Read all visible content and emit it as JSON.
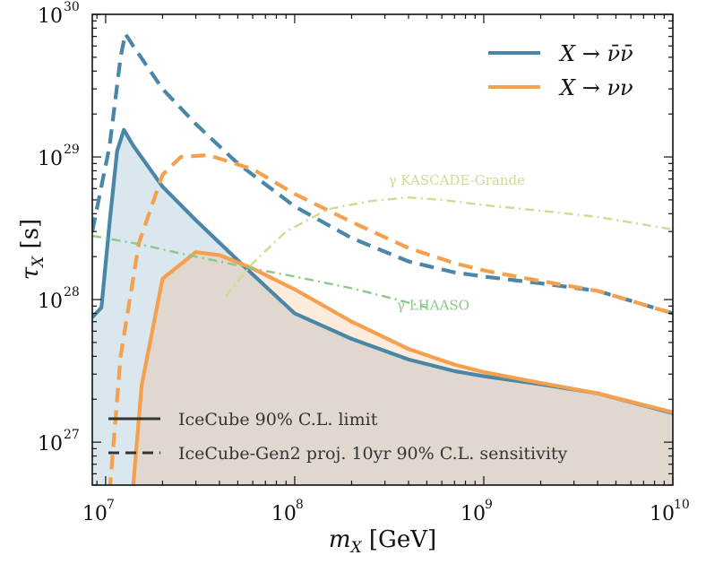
{
  "chart_data": {
    "type": "line",
    "xscale": "log",
    "yscale": "log",
    "xlim": [
      8500000.0,
      10000000000.0
    ],
    "ylim": [
      5e+26,
      1e+30
    ],
    "xlabel": "m_X [GeV]",
    "ylabel": "τ_X [s]",
    "xticks": [
      {
        "base": "10",
        "exp": "7",
        "value": 10000000.0
      },
      {
        "base": "10",
        "exp": "8",
        "value": 100000000.0
      },
      {
        "base": "10",
        "exp": "9",
        "value": 1000000000.0
      },
      {
        "base": "10",
        "exp": "10",
        "value": 10000000000.0
      }
    ],
    "yticks": [
      {
        "base": "10",
        "exp": "27",
        "value": 1e+27
      },
      {
        "base": "10",
        "exp": "28",
        "value": 1e+28
      },
      {
        "base": "10",
        "exp": "29",
        "value": 1e+29
      },
      {
        "base": "10",
        "exp": "30",
        "value": 1e+30
      }
    ],
    "colors": {
      "blue": "#4a86a8",
      "orange": "#f4a04e",
      "kascade": "#c9dd95",
      "lhaaso": "#8ac98a"
    },
    "series": [
      {
        "name": "X → ν̄ν̄ (IceCube 90% C.L. limit)",
        "color_key": "blue",
        "style": "solid",
        "fill": true,
        "x": [
          8500000.0,
          9500000.0,
          10500000.0,
          11500000.0,
          12500000.0,
          14000000.0,
          20000000.0,
          30000000.0,
          40000000.0,
          60000000.0,
          100000000.0,
          200000000.0,
          400000000.0,
          700000000.0,
          1000000000.0,
          2000000000.0,
          4000000000.0,
          10000000000.0
        ],
        "y": [
          7.5e+27,
          8.8e+27,
          3.5e+28,
          1.1e+29,
          1.55e+29,
          1.2e+29,
          6.2e+28,
          3.6e+28,
          2.5e+28,
          1.5e+28,
          8e+27,
          5.3e+27,
          3.8e+27,
          3.15e+27,
          2.9e+27,
          2.55e+27,
          2.2e+27,
          1.6e+27
        ]
      },
      {
        "name": "X → νν (IceCube 90% C.L. limit)",
        "color_key": "orange",
        "style": "solid",
        "fill": true,
        "x": [
          13500000.0,
          15500000.0,
          20000000.0,
          30000000.0,
          40000000.0,
          60000000.0,
          100000000.0,
          200000000.0,
          400000000.0,
          700000000.0,
          1000000000.0,
          2000000000.0,
          4000000000.0,
          10000000000.0
        ],
        "y": [
          2.8e+26,
          2.5e+27,
          1.4e+28,
          2.15e+28,
          2.05e+28,
          1.65e+28,
          1.18e+28,
          7e+27,
          4.5e+27,
          3.5e+27,
          3.1e+27,
          2.6e+27,
          2.2e+27,
          1.62e+27
        ]
      },
      {
        "name": "X → ν̄ν̄ (IceCube-Gen2 proj. 10yr sensitivity)",
        "color_key": "blue",
        "style": "dashed",
        "fill": false,
        "x": [
          8500000.0,
          10500000.0,
          12000000.0,
          12700000.0,
          14000000.0,
          20000000.0,
          30000000.0,
          50000000.0,
          100000000.0,
          200000000.0,
          400000000.0,
          700000000.0,
          1000000000.0,
          2000000000.0,
          4000000000.0,
          10000000000.0
        ],
        "y": [
          3e+28,
          1.2e+29,
          5e+29,
          7.3e+29,
          6e+29,
          3e+29,
          1.7e+29,
          9e+28,
          4.5e+28,
          2.7e+28,
          1.85e+28,
          1.55e+28,
          1.45e+28,
          1.3e+28,
          1.15e+28,
          8e+27
        ]
      },
      {
        "name": "X → νν (IceCube-Gen2 proj. 10yr sensitivity)",
        "color_key": "orange",
        "style": "dashed",
        "fill": false,
        "x": [
          10500000.0,
          12000000.0,
          15000000.0,
          20000000.0,
          25000000.0,
          35000000.0,
          60000000.0,
          100000000.0,
          200000000.0,
          400000000.0,
          700000000.0,
          1000000000.0,
          2000000000.0,
          4000000000.0,
          10000000000.0
        ],
        "y": [
          4.5e+26,
          4e+27,
          2.5e+28,
          7.5e+28,
          1e+29,
          1.03e+29,
          8.2e+28,
          5.5e+28,
          3.5e+28,
          2.3e+28,
          1.8e+28,
          1.6e+28,
          1.35e+28,
          1.15e+28,
          8e+27
        ]
      },
      {
        "name": "γ KASCADE-Grande",
        "color_key": "kascade",
        "style": "dashdot",
        "fill": false,
        "x": [
          43000000.0,
          60000000.0,
          90000000.0,
          150000000.0,
          250000000.0,
          400000000.0,
          600000000.0,
          1000000000.0,
          2000000000.0,
          4000000000.0,
          10000000000.0
        ],
        "y": [
          1.05e+28,
          1.8e+28,
          3e+28,
          4.3e+28,
          4.9e+28,
          5.2e+28,
          5e+28,
          4.6e+28,
          4.2e+28,
          3.8e+28,
          3.1e+28
        ]
      },
      {
        "name": "γ LHAASO",
        "color_key": "lhaaso",
        "style": "dashdot",
        "fill": false,
        "x": [
          8500000.0,
          15000000.0,
          25000000.0,
          40000000.0,
          60000000.0,
          100000000.0,
          200000000.0,
          300000000.0,
          500000000.0
        ],
        "y": [
          2.8e+28,
          2.45e+28,
          2.1e+28,
          1.85e+28,
          1.65e+28,
          1.45e+28,
          1.2e+28,
          1.05e+28,
          8.8e+27
        ]
      }
    ],
    "legend_top": [
      {
        "label": "X → ν̄ν̄",
        "color_key": "blue"
      },
      {
        "label": "X → νν",
        "color_key": "orange"
      }
    ],
    "legend_bottom": [
      {
        "label": "IceCube 90% C.L. limit",
        "style": "solid"
      },
      {
        "label": "IceCube-Gen2 proj. 10yr 90% C.L. sensitivity",
        "style": "dashed"
      }
    ],
    "annotations": [
      {
        "text": "γ KASCADE-Grande",
        "color_key": "kascade",
        "x": 720000000.0,
        "y": 6.4e+28
      },
      {
        "text": "γ LHAASO",
        "color_key": "lhaaso",
        "x": 540000000.0,
        "y": 8.5e+27
      }
    ]
  }
}
